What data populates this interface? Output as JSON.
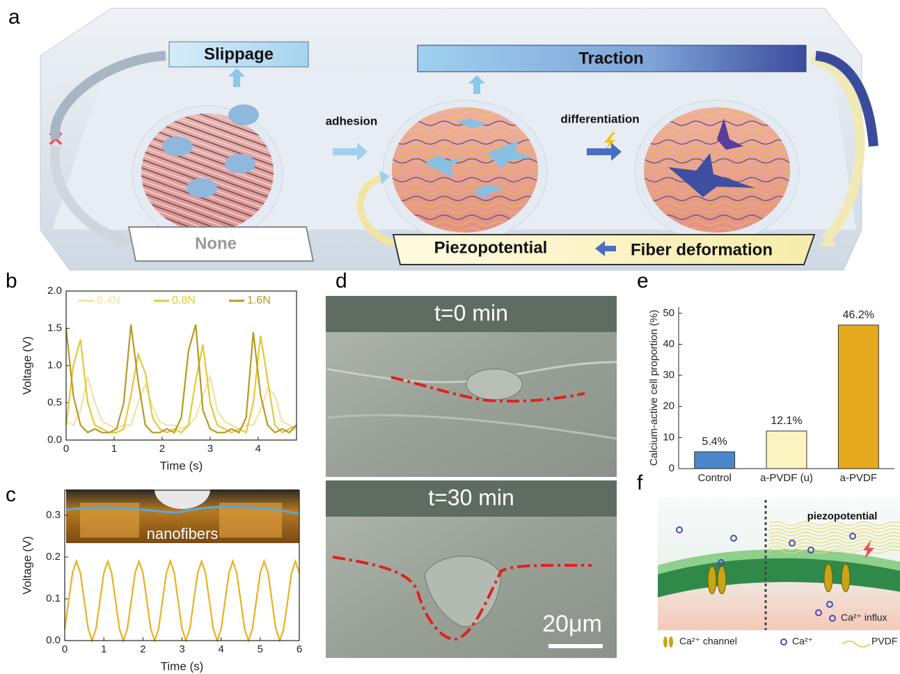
{
  "panel_labels": [
    "a",
    "b",
    "c",
    "d",
    "e",
    "f"
  ],
  "panel_a": {
    "slippage": "Slippage",
    "traction": "Traction",
    "adhesion": "adhesion",
    "differentiation": "differentiation",
    "none": "None",
    "piezopotential": "Piezopotential",
    "fiber_deformation": "Fiber deformation"
  },
  "panel_d": {
    "top_label": "t=0 min",
    "bottom_label": "t=30 min",
    "scale_bar": "20μm"
  },
  "panel_f": {
    "piezopotential": "piezopotential",
    "influx": "Ca²⁺ influx",
    "legend_channel": "Ca²⁺ channel",
    "legend_ion": "Ca²⁺",
    "legend_pvdf": "PVDF"
  },
  "chart_data": [
    {
      "type": "line",
      "xlabel": "Time (s)",
      "ylabel": "Voltage (V)",
      "xlim": [
        0,
        4.8
      ],
      "ylim": [
        0,
        2.0
      ],
      "xticks": [
        0,
        1,
        2,
        3,
        4
      ],
      "yticks": [
        {
          "value": 0,
          "label": "0.0"
        },
        0.5,
        {
          "value": 1,
          "label": "1.0"
        },
        1.5,
        {
          "value": 2,
          "label": "2.0"
        }
      ],
      "x": [
        0,
        0.15,
        0.3,
        0.45,
        0.6,
        0.75,
        0.9,
        1.05,
        1.2,
        1.35,
        1.5,
        1.65,
        1.8,
        1.95,
        2.1,
        2.25,
        2.4,
        2.55,
        2.7,
        2.85,
        3.0,
        3.15,
        3.3,
        3.45,
        3.6,
        3.75,
        3.9,
        4.05,
        4.2,
        4.35,
        4.5,
        4.65,
        4.8
      ],
      "series": [
        {
          "name": "0.4N",
          "color": "#f1e3a0",
          "values": [
            0.25,
            0.2,
            0.4,
            0.85,
            0.5,
            0.25,
            0.2,
            0.15,
            0.2,
            0.2,
            0.5,
            0.75,
            0.45,
            0.25,
            0.2,
            0.2,
            0.15,
            0.2,
            0.3,
            0.6,
            0.85,
            0.4,
            0.25,
            0.2,
            0.15,
            0.2,
            0.2,
            0.4,
            0.7,
            0.6,
            0.25,
            0.2,
            0.15
          ]
        },
        {
          "name": "0.8N",
          "color": "#e5c832",
          "values": [
            0.2,
            1.0,
            1.35,
            0.5,
            0.2,
            0.15,
            0.1,
            0.1,
            0.15,
            0.6,
            1.15,
            0.9,
            0.3,
            0.15,
            0.1,
            0.15,
            0.1,
            0.2,
            0.8,
            1.28,
            0.5,
            0.2,
            0.15,
            0.1,
            0.15,
            0.1,
            0.5,
            1.4,
            0.8,
            0.2,
            0.1,
            0.15,
            0.2
          ]
        },
        {
          "name": "1.6N",
          "color": "#b59a22",
          "values": [
            1.5,
            0.6,
            0.2,
            0.1,
            0.15,
            0.1,
            0.1,
            0.15,
            0.5,
            1.55,
            0.8,
            0.2,
            0.1,
            0.1,
            0.15,
            0.1,
            0.3,
            1.2,
            1.55,
            0.4,
            0.15,
            0.1,
            0.1,
            0.15,
            0.1,
            0.3,
            1.45,
            0.6,
            0.2,
            0.1,
            0.15,
            0.1,
            0.2
          ]
        }
      ]
    },
    {
      "type": "line",
      "xlabel": "Time (s)",
      "ylabel": "Voltage (V)",
      "annotation": "nanofibers",
      "xlim": [
        0,
        6
      ],
      "ylim": [
        0,
        0.36
      ],
      "xticks": [
        0,
        1,
        2,
        3,
        4,
        5,
        6
      ],
      "yticks": [
        {
          "value": 0,
          "label": "0.0"
        },
        0.1,
        0.2,
        0.3
      ],
      "x": [
        0,
        0.1,
        0.2,
        0.3,
        0.4,
        0.5,
        0.6,
        0.7,
        0.8,
        0.9,
        1.0,
        1.1,
        1.2,
        1.3,
        1.4,
        1.5,
        1.6,
        1.7,
        1.8,
        1.9,
        2.0,
        2.1,
        2.2,
        2.3,
        2.4,
        2.5,
        2.6,
        2.7,
        2.8,
        2.9,
        3.0,
        3.1,
        3.2,
        3.3,
        3.4,
        3.5,
        3.6,
        3.7,
        3.8,
        3.9,
        4.0,
        4.1,
        4.2,
        4.3,
        4.4,
        4.5,
        4.6,
        4.7,
        4.8,
        4.9,
        5.0,
        5.1,
        5.2,
        5.3,
        5.4,
        5.5,
        5.6,
        5.7,
        5.8,
        5.9,
        6.0
      ],
      "series": [
        {
          "color": "#e8b21e",
          "values": [
            0.028,
            0.095,
            0.162,
            0.19,
            0.162,
            0.095,
            0.028,
            0,
            0.028,
            0.095,
            0.162,
            0.19,
            0.162,
            0.095,
            0.028,
            0,
            0.028,
            0.095,
            0.162,
            0.19,
            0.162,
            0.095,
            0.028,
            0,
            0.028,
            0.095,
            0.162,
            0.19,
            0.162,
            0.095,
            0.028,
            0,
            0.028,
            0.095,
            0.162,
            0.19,
            0.162,
            0.095,
            0.028,
            0,
            0.028,
            0.095,
            0.162,
            0.19,
            0.162,
            0.095,
            0.028,
            0,
            0.028,
            0.095,
            0.162,
            0.19,
            0.162,
            0.095,
            0.028,
            0,
            0.028,
            0.095,
            0.162,
            0.19,
            0.162
          ]
        }
      ]
    },
    {
      "type": "bar",
      "ylabel": "Calcium-active cell proportion (%)",
      "categories": [
        "Control",
        "a-PVDF (u)",
        "a-PVDF"
      ],
      "values": [
        5.4,
        12.1,
        46.2
      ],
      "value_labels": [
        "5.4%",
        "12.1%",
        "46.2%"
      ],
      "colors": [
        "#4a86c8",
        "#fbf3c0",
        "#e6aa1e"
      ],
      "ylim": [
        0,
        52
      ],
      "yticks": [
        0,
        10,
        20,
        30,
        40,
        50
      ]
    }
  ]
}
